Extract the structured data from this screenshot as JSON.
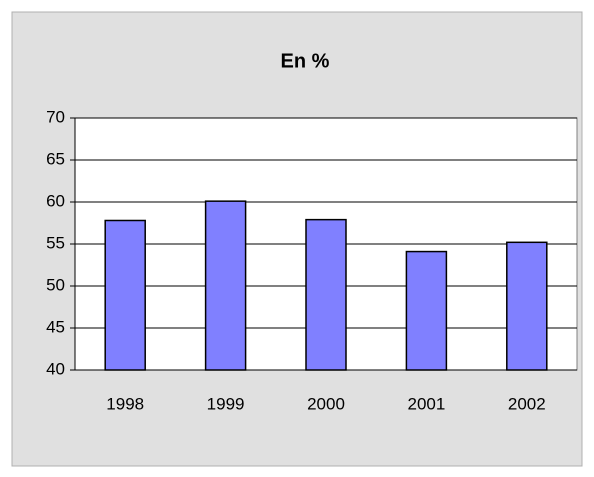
{
  "chart_data": {
    "type": "bar",
    "title": "En %",
    "categories": [
      "1998",
      "1999",
      "2000",
      "2001",
      "2002"
    ],
    "values": [
      57.8,
      60.1,
      57.9,
      54.1,
      55.2
    ],
    "color": "#8080ff",
    "ylim": [
      40,
      70
    ],
    "yticks": [
      40,
      45,
      50,
      55,
      60,
      65,
      70
    ],
    "grid": true
  }
}
